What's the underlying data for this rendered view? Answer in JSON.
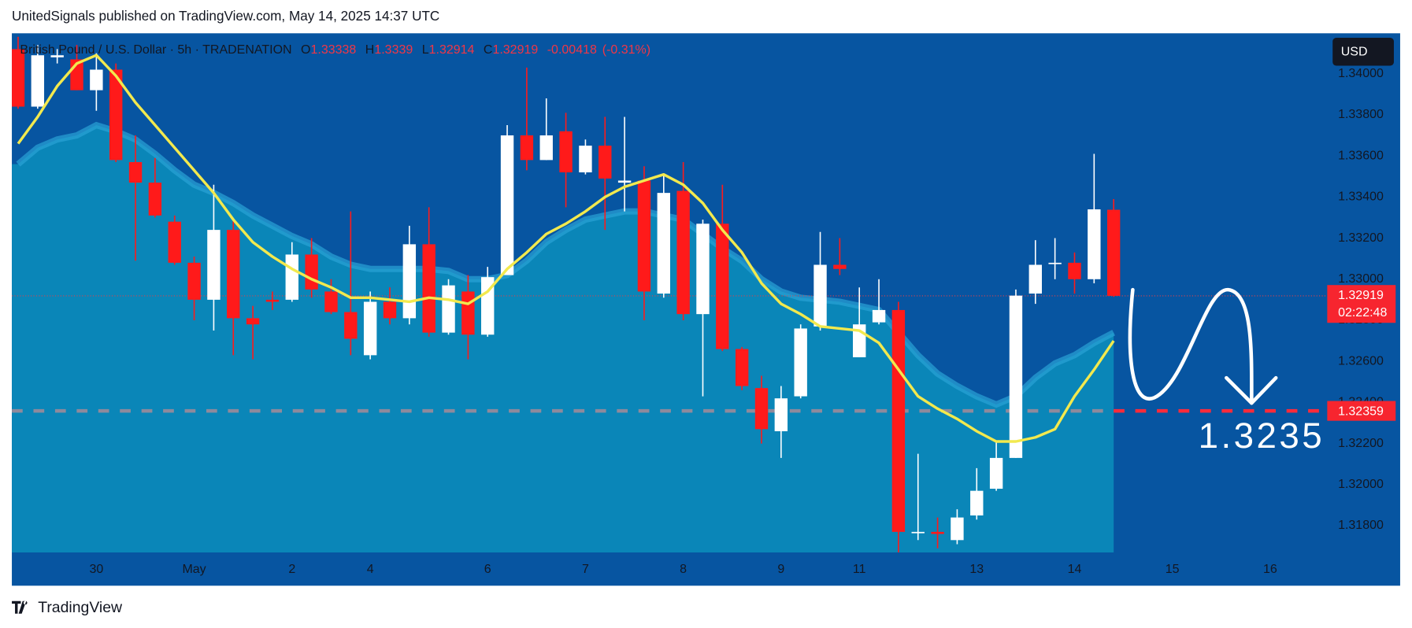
{
  "chart_data": {
    "type": "candlestick",
    "publisher_line": "UnitedSignals published on TradingView.com, May 14, 2025 14:37 UTC",
    "legend": {
      "symbol": "British Pound / U.S. Dollar · 5h · TRADENATION",
      "fields": [
        {
          "key": "O",
          "value": 1.33338
        },
        {
          "key": "H",
          "value": 1.3339
        },
        {
          "key": "L",
          "value": 1.32914
        },
        {
          "key": "C",
          "value": 1.32919
        }
      ],
      "change": -0.00418,
      "change_pct": {
        "value": -0.31,
        "label": "(-0.31%)"
      }
    },
    "currency_button": "USD",
    "footer": "TradingView",
    "up_color": "#ffffff",
    "down_color": "#ff1a1a",
    "open": [
      1.3412,
      1.3384,
      1.3408,
      1.3407,
      1.3392,
      1.3402,
      1.3357,
      1.3347,
      1.3328,
      1.3308,
      1.329,
      1.3324,
      1.3281,
      1.329,
      1.329,
      1.3312,
      1.3294,
      1.3284,
      1.3263,
      1.3289,
      1.3281,
      1.3317,
      1.3274,
      1.3294,
      1.3273,
      1.3302,
      1.337,
      1.3358,
      1.3372,
      1.3352,
      1.3365,
      1.3347,
      1.3348,
      1.3293,
      1.3343,
      1.3283,
      1.3327,
      1.3266,
      1.3247,
      1.3226,
      1.3243,
      1.3277,
      1.3307,
      1.3262,
      1.3279,
      1.3285,
      1.3177,
      1.3177,
      1.3173,
      1.3185,
      1.3198,
      1.3213,
      1.3293,
      1.3308,
      1.3308,
      1.33,
      1.33338
    ],
    "high": [
      1.3418,
      1.3414,
      1.3412,
      1.3414,
      1.341,
      1.3405,
      1.337,
      1.3359,
      1.3331,
      1.3311,
      1.3346,
      1.3329,
      1.3287,
      1.3294,
      1.3318,
      1.332,
      1.33,
      1.3333,
      1.3294,
      1.3296,
      1.3326,
      1.3335,
      1.33,
      1.3302,
      1.3306,
      1.3375,
      1.3403,
      1.3388,
      1.3381,
      1.3368,
      1.3379,
      1.3379,
      1.3355,
      1.3351,
      1.3357,
      1.3329,
      1.3346,
      1.3267,
      1.3253,
      1.3248,
      1.3278,
      1.3323,
      1.332,
      1.3296,
      1.33,
      1.3289,
      1.3215,
      1.3184,
      1.3188,
      1.3208,
      1.3221,
      1.3295,
      1.3319,
      1.332,
      1.3313,
      1.3361,
      1.3339
    ],
    "low": [
      1.3383,
      1.3383,
      1.3405,
      1.3392,
      1.3382,
      1.3357,
      1.3309,
      1.333,
      1.3307,
      1.328,
      1.3275,
      1.3263,
      1.3261,
      1.3285,
      1.3289,
      1.3291,
      1.3283,
      1.3263,
      1.3261,
      1.3278,
      1.3278,
      1.3272,
      1.3273,
      1.3261,
      1.3272,
      1.3302,
      1.3353,
      1.3358,
      1.3335,
      1.3351,
      1.3324,
      1.3333,
      1.328,
      1.3291,
      1.328,
      1.3243,
      1.3265,
      1.3246,
      1.322,
      1.3213,
      1.3242,
      1.3275,
      1.3302,
      1.3262,
      1.3278,
      1.3167,
      1.3173,
      1.3169,
      1.3171,
      1.3183,
      1.3197,
      1.3213,
      1.3288,
      1.33,
      1.3293,
      1.3298,
      1.32914
    ],
    "close": [
      1.3384,
      1.3409,
      1.3409,
      1.3392,
      1.3402,
      1.3358,
      1.3347,
      1.3331,
      1.3308,
      1.329,
      1.3324,
      1.3281,
      1.3278,
      1.3289,
      1.3312,
      1.3295,
      1.3284,
      1.3271,
      1.3289,
      1.3281,
      1.3317,
      1.3274,
      1.3297,
      1.3273,
      1.3301,
      1.337,
      1.3358,
      1.337,
      1.3352,
      1.3365,
      1.3349,
      1.3348,
      1.3294,
      1.3342,
      1.3283,
      1.3327,
      1.3266,
      1.3248,
      1.3227,
      1.3242,
      1.3276,
      1.3307,
      1.3305,
      1.3278,
      1.3285,
      1.3177,
      1.3177,
      1.3176,
      1.3184,
      1.3197,
      1.3213,
      1.3292,
      1.3307,
      1.3308,
      1.33,
      1.3334,
      1.32919
    ],
    "overlays": [
      {
        "color": "#0a86b8",
        "fill": true,
        "values": [
          1.3356,
          1.3364,
          1.3368,
          1.337,
          1.3375,
          1.3372,
          1.3368,
          1.3361,
          1.3353,
          1.3346,
          1.3342,
          1.3337,
          1.3331,
          1.3326,
          1.3321,
          1.3317,
          1.3311,
          1.3307,
          1.3305,
          1.3305,
          1.3305,
          1.3305,
          1.3304,
          1.33,
          1.33,
          1.3302,
          1.3309,
          1.3318,
          1.3324,
          1.3329,
          1.3331,
          1.3333,
          1.3333,
          1.3331,
          1.3329,
          1.3322,
          1.3315,
          1.3309,
          1.33,
          1.3294,
          1.3291,
          1.329,
          1.3289,
          1.3287,
          1.3285,
          1.3274,
          1.3263,
          1.3254,
          1.3248,
          1.3243,
          1.3239,
          1.3243,
          1.3252,
          1.3259,
          1.3263,
          1.3269,
          1.3274
        ]
      },
      {
        "color": "#f2e94e",
        "fill": false,
        "values": [
          1.3366,
          1.3379,
          1.3394,
          1.3405,
          1.3409,
          1.3399,
          1.3386,
          1.3375,
          1.3364,
          1.3353,
          1.3342,
          1.3329,
          1.3318,
          1.3311,
          1.3305,
          1.33,
          1.3296,
          1.3291,
          1.3291,
          1.329,
          1.3289,
          1.3291,
          1.329,
          1.3288,
          1.3294,
          1.3305,
          1.3313,
          1.3322,
          1.3327,
          1.3333,
          1.334,
          1.3345,
          1.3348,
          1.3351,
          1.3346,
          1.3337,
          1.3324,
          1.3313,
          1.3298,
          1.3288,
          1.3283,
          1.3277,
          1.3276,
          1.3275,
          1.3269,
          1.3256,
          1.3243,
          1.3237,
          1.3232,
          1.3226,
          1.3221,
          1.3221,
          1.3223,
          1.3227,
          1.3243,
          1.3256,
          1.327
        ]
      }
    ],
    "xlim": [
      -0.32,
      66.87
    ],
    "xticks": [
      {
        "value": 4,
        "label": "30"
      },
      {
        "value": 9,
        "label": "May"
      },
      {
        "value": 14,
        "label": "2"
      },
      {
        "value": 18,
        "label": "4"
      },
      {
        "value": 24,
        "label": "6"
      },
      {
        "value": 29,
        "label": "7"
      },
      {
        "value": 34,
        "label": "8"
      },
      {
        "value": 39,
        "label": "9"
      },
      {
        "value": 43,
        "label": "11"
      },
      {
        "value": 49,
        "label": "13"
      },
      {
        "value": 54,
        "label": "14"
      },
      {
        "value": 59,
        "label": "15"
      },
      {
        "value": 64,
        "label": "16"
      }
    ],
    "ylim": [
      1.3167,
      1.34197
    ],
    "yticks": [
      {
        "value": 1.34,
        "label": "1.34000"
      },
      {
        "value": 1.338,
        "label": "1.33800"
      },
      {
        "value": 1.336,
        "label": "1.33600"
      },
      {
        "value": 1.334,
        "label": "1.33400"
      },
      {
        "value": 1.332,
        "label": "1.33200"
      },
      {
        "value": 1.33,
        "label": "1.33000"
      },
      {
        "value": 1.328,
        "label": "1.32800"
      },
      {
        "value": 1.326,
        "label": "1.32600"
      },
      {
        "value": 1.324,
        "label": "1.32400"
      },
      {
        "value": 1.322,
        "label": "1.32200"
      },
      {
        "value": 1.32,
        "label": "1.32000"
      },
      {
        "value": 1.318,
        "label": "1.31800"
      }
    ],
    "last_price": 1.32919,
    "countdown": "02:22:48",
    "level": 1.32359,
    "target": 1.3235
  }
}
